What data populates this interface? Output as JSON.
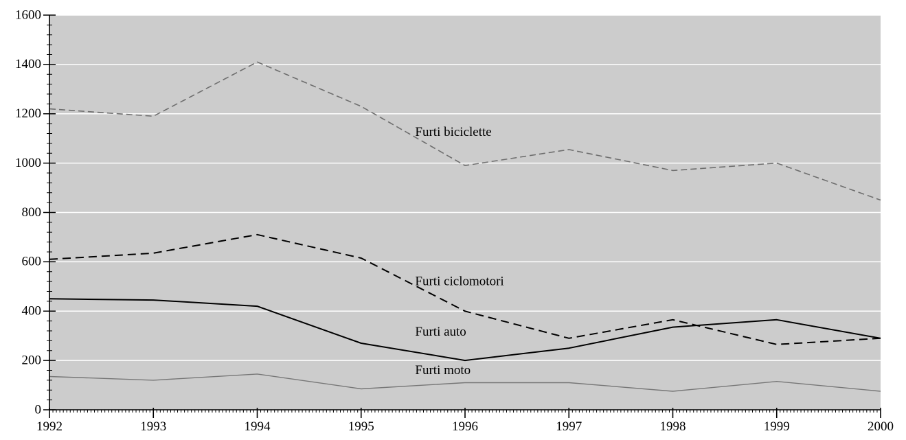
{
  "chart_data": {
    "type": "line",
    "title": "",
    "xlabel": "",
    "ylabel": "",
    "x": [
      "1992",
      "1993",
      "1994",
      "1995",
      "1996",
      "1997",
      "1998",
      "1999",
      "2000"
    ],
    "xlim": [
      1992,
      2000
    ],
    "ylim": [
      0,
      1600
    ],
    "y_ticks": [
      "0",
      "200",
      "400",
      "600",
      "800",
      "1000",
      "1200",
      "1400",
      "1600"
    ],
    "grid": true,
    "background_color": "#cccccc",
    "series": [
      {
        "name": "Furti biciclette",
        "values": [
          1220,
          1190,
          1410,
          1230,
          990,
          1055,
          970,
          1000,
          850
        ],
        "color": "#6e6e6e",
        "style": "dashed-fine"
      },
      {
        "name": "Furti ciclomotori",
        "values": [
          610,
          635,
          710,
          615,
          400,
          290,
          365,
          265,
          290
        ],
        "color": "#000000",
        "style": "dashed"
      },
      {
        "name": "Furti auto",
        "values": [
          450,
          445,
          420,
          270,
          200,
          250,
          335,
          365,
          290
        ],
        "color": "#000000",
        "style": "solid"
      },
      {
        "name": "Furti moto",
        "values": [
          135,
          120,
          145,
          85,
          110,
          110,
          75,
          115,
          75
        ],
        "color": "#777777",
        "style": "solid-thin"
      }
    ]
  }
}
